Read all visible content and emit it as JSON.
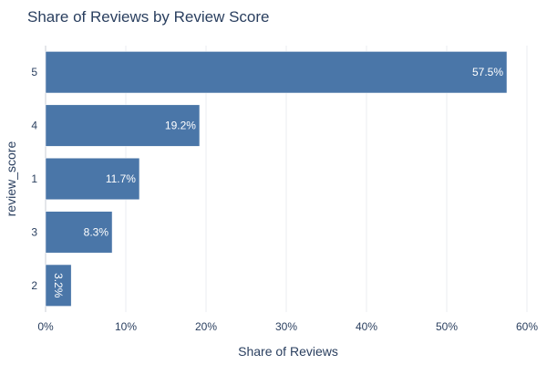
{
  "chart_data": {
    "type": "bar",
    "orientation": "horizontal",
    "title": "Share of Reviews by Review Score",
    "xlabel": "Share of Reviews",
    "ylabel": "review_score",
    "categories": [
      "5",
      "4",
      "1",
      "3",
      "2"
    ],
    "values": [
      57.5,
      19.2,
      11.7,
      8.3,
      3.2
    ],
    "value_labels": [
      "57.5%",
      "19.2%",
      "11.7%",
      "8.3%",
      "3.2%"
    ],
    "xlim": [
      0,
      60
    ],
    "xticks": [
      0,
      10,
      20,
      30,
      40,
      50,
      60
    ],
    "xtick_labels": [
      "0%",
      "10%",
      "20%",
      "30%",
      "40%",
      "50%",
      "60%"
    ],
    "grid": true,
    "bar_color": "#4a76a8"
  }
}
